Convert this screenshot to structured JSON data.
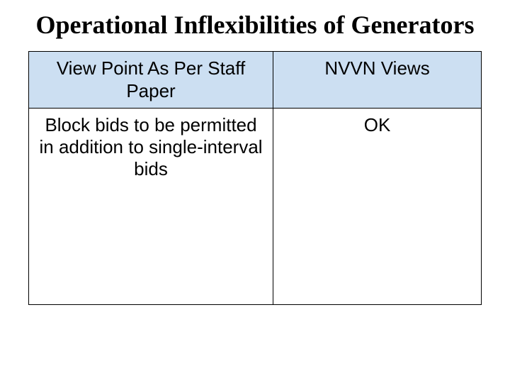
{
  "title": "Operational Inflexibilities of Generators",
  "table": {
    "header_bg": "#ccdff2",
    "border_color": "#000000",
    "columns": [
      {
        "label": "View Point As Per Staff Paper",
        "width_pct": 54
      },
      {
        "label": "NVVN Views",
        "width_pct": 46
      }
    ],
    "rows": [
      {
        "left": "Block bids to be permitted in addition to single-interval bids",
        "right": "OK"
      }
    ]
  }
}
